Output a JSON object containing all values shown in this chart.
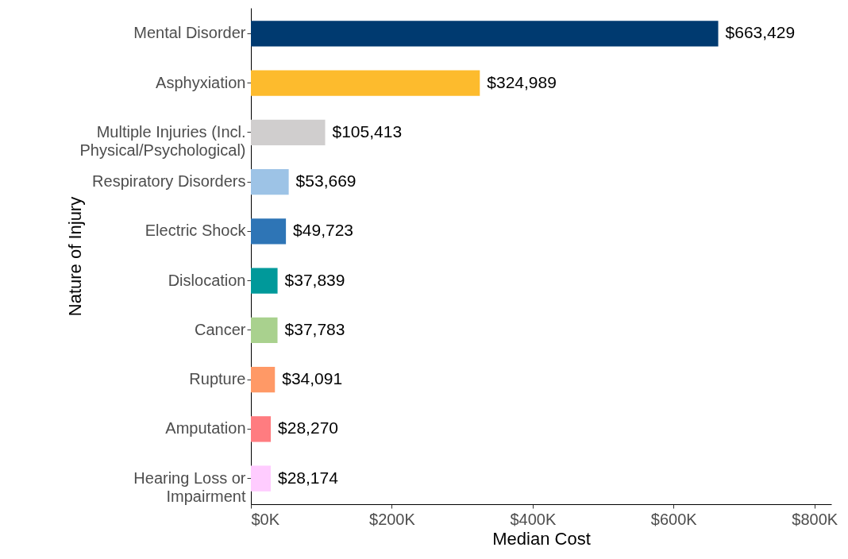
{
  "chart_data": {
    "type": "bar",
    "orientation": "horizontal",
    "xlabel": "Median Cost",
    "ylabel": "Nature of Injury",
    "categories": [
      "Mental Disorder",
      "Asphyxiation",
      "Multiple Injuries (Incl.\nPhysical/Psychological)",
      "Respiratory Disorders",
      "Electric Shock",
      "Dislocation",
      "Cancer",
      "Rupture",
      "Amputation",
      "Hearing Loss or\nImpairment"
    ],
    "values": [
      663429,
      324989,
      105413,
      53669,
      49723,
      37839,
      37783,
      34091,
      28270,
      28174
    ],
    "value_labels": [
      "$663,429",
      "$324,989",
      "$105,413",
      "$53,669",
      "$49,723",
      "$37,839",
      "$37,783",
      "$34,091",
      "$28,270",
      "$28,174"
    ],
    "colors": [
      "#003a70",
      "#fdbb2d",
      "#d0cece",
      "#9dc3e6",
      "#2e75b6",
      "#00999a",
      "#a9d18e",
      "#ff9966",
      "#ff7c80",
      "#ffccff"
    ],
    "xlim": [
      0,
      824000
    ],
    "xticks": [
      {
        "value": 0,
        "label": "$0K"
      },
      {
        "value": 200000,
        "label": "$200K"
      },
      {
        "value": 400000,
        "label": "$400K"
      },
      {
        "value": 600000,
        "label": "$600K"
      },
      {
        "value": 800000,
        "label": "$800K"
      }
    ],
    "grid": false
  }
}
